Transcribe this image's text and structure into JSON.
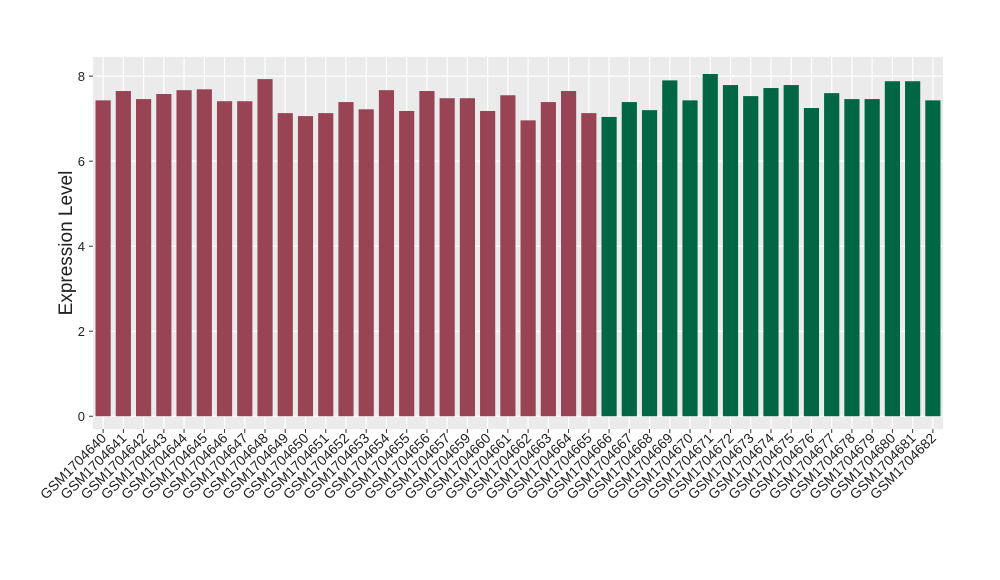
{
  "chart_data": {
    "type": "bar",
    "y_label": "Expression Level",
    "categories": [
      "GSM1704640",
      "GSM1704641",
      "GSM1704642",
      "GSM1704643",
      "GSM1704644",
      "GSM1704645",
      "GSM1704646",
      "GSM1704647",
      "GSM1704648",
      "GSM1704649",
      "GSM1704650",
      "GSM1704651",
      "GSM1704652",
      "GSM1704653",
      "GSM1704654",
      "GSM1704655",
      "GSM1704656",
      "GSM1704657",
      "GSM1704659",
      "GSM1704660",
      "GSM1704661",
      "GSM1704662",
      "GSM1704663",
      "GSM1704664",
      "GSM1704665",
      "GSM1704666",
      "GSM1704667",
      "GSM1704668",
      "GSM1704669",
      "GSM1704670",
      "GSM1704671",
      "GSM1704672",
      "GSM1704673",
      "GSM1704674",
      "GSM1704675",
      "GSM1704676",
      "GSM1704677",
      "GSM1704678",
      "GSM1704679",
      "GSM1704680",
      "GSM1704681",
      "GSM1704682"
    ],
    "values": [
      7.43,
      7.65,
      7.46,
      7.58,
      7.67,
      7.69,
      7.41,
      7.41,
      7.93,
      7.13,
      7.06,
      7.13,
      7.39,
      7.22,
      7.67,
      7.18,
      7.65,
      7.48,
      7.48,
      7.18,
      7.55,
      6.96,
      7.39,
      7.65,
      7.13,
      7.04,
      7.39,
      7.2,
      7.9,
      7.43,
      8.05,
      7.79,
      7.53,
      7.72,
      7.79,
      7.25,
      7.6,
      7.46,
      7.46,
      7.88,
      7.88,
      7.43
    ],
    "colors": [
      "#994455",
      "#994455",
      "#994455",
      "#994455",
      "#994455",
      "#994455",
      "#994455",
      "#994455",
      "#994455",
      "#994455",
      "#994455",
      "#994455",
      "#994455",
      "#994455",
      "#994455",
      "#994455",
      "#994455",
      "#994455",
      "#994455",
      "#994455",
      "#994455",
      "#994455",
      "#994455",
      "#994455",
      "#994455",
      "#006644",
      "#006644",
      "#006644",
      "#006644",
      "#006644",
      "#006644",
      "#006644",
      "#006644",
      "#006644",
      "#006644",
      "#006644",
      "#006644",
      "#006644",
      "#006644",
      "#006644",
      "#006644",
      "#006644"
    ],
    "ylim": [
      -0.3,
      8.45
    ],
    "yticks": [
      0,
      2,
      4,
      6,
      8
    ],
    "grid": true
  }
}
